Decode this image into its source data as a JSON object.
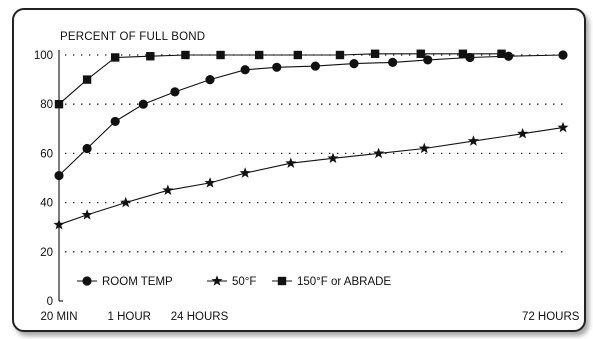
{
  "chart_data": {
    "type": "line",
    "ylabel": "PERCENT OF FULL BOND",
    "xlabel": "",
    "ylim": [
      0,
      100
    ],
    "yticks": [
      0,
      20,
      40,
      60,
      80,
      100
    ],
    "xticks": [
      {
        "x": 0,
        "label": "20 MIN"
      },
      {
        "x": 2,
        "label": "1 HOUR"
      },
      {
        "x": 4,
        "label": "24 HOURS"
      },
      {
        "x": 14,
        "label": "72 HOURS"
      }
    ],
    "xlim": [
      0,
      14.35
    ],
    "grid": "dotted horizontal",
    "legend_position": "bottom-left",
    "series": [
      {
        "name": "ROOM TEMP",
        "marker": "circle",
        "points": [
          [
            0,
            51
          ],
          [
            0.8,
            62
          ],
          [
            1.6,
            73
          ],
          [
            2.4,
            80
          ],
          [
            3.3,
            85
          ],
          [
            4.3,
            90
          ],
          [
            5.3,
            94
          ],
          [
            6.2,
            95
          ],
          [
            7.3,
            95.5
          ],
          [
            8.4,
            96.5
          ],
          [
            9.5,
            97
          ],
          [
            10.5,
            98
          ],
          [
            11.7,
            99
          ],
          [
            12.8,
            99.5
          ],
          [
            14.35,
            100
          ]
        ]
      },
      {
        "name": "50°F",
        "marker": "star",
        "points": [
          [
            0,
            31
          ],
          [
            0.8,
            35
          ],
          [
            1.9,
            40
          ],
          [
            3.1,
            45
          ],
          [
            4.3,
            48
          ],
          [
            5.3,
            52
          ],
          [
            6.6,
            56
          ],
          [
            7.8,
            58
          ],
          [
            9.1,
            60
          ],
          [
            10.4,
            62
          ],
          [
            11.8,
            65
          ],
          [
            13.2,
            68
          ],
          [
            14.35,
            70.5
          ]
        ]
      },
      {
        "name": "150°F or ABRADE",
        "marker": "square",
        "points": [
          [
            0,
            80
          ],
          [
            0.8,
            90
          ],
          [
            1.6,
            99
          ],
          [
            2.6,
            99.5
          ],
          [
            3.6,
            100
          ],
          [
            4.6,
            100
          ],
          [
            5.7,
            100
          ],
          [
            6.8,
            100
          ],
          [
            8,
            100
          ],
          [
            9,
            100.5
          ],
          [
            10.3,
            100.5
          ],
          [
            11.5,
            100.5
          ],
          [
            12.6,
            100.5
          ]
        ]
      }
    ]
  }
}
